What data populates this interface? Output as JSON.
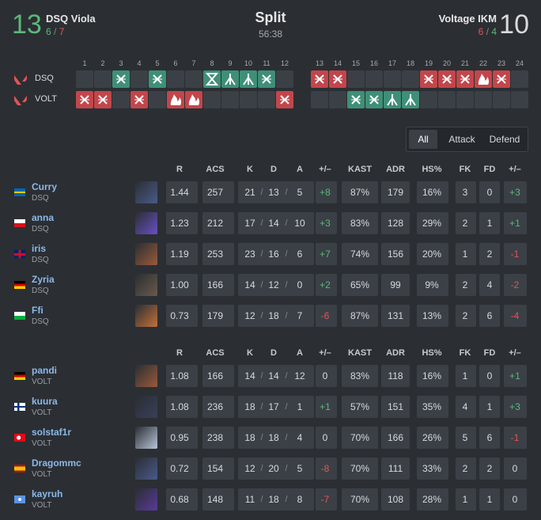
{
  "header": {
    "team1": {
      "score": "13",
      "name": "DSQ Viola",
      "half1": "6",
      "half2": "7"
    },
    "map": "Split",
    "duration": "56:38",
    "team2": {
      "score": "10",
      "name": "Voltage IKM",
      "half1": "6",
      "half2": "4"
    },
    "half_separator": "/"
  },
  "rounds": {
    "numbers": [
      "1",
      "2",
      "3",
      "4",
      "5",
      "6",
      "7",
      "8",
      "9",
      "10",
      "11",
      "12",
      "13",
      "14",
      "15",
      "16",
      "17",
      "18",
      "19",
      "20",
      "21",
      "22",
      "23",
      "24"
    ],
    "team1_label": "DSQ",
    "team2_label": "VOLT"
  },
  "tabs": [
    "All",
    "Attack",
    "Defend"
  ],
  "table": {
    "columns": [
      "R",
      "ACS",
      "K",
      "D",
      "A",
      "+/–",
      "KAST",
      "ADR",
      "HS%",
      "FK",
      "FD",
      "+/–"
    ],
    "kda_separator": "/",
    "teams": [
      {
        "players": [
          {
            "name": "Curry",
            "team": "DSQ",
            "stats": [
              "1.44",
              "257",
              "21",
              "13",
              "5",
              "+8",
              "87%",
              "179",
              "16%",
              "3",
              "0",
              "+3"
            ]
          },
          {
            "name": "anna",
            "team": "DSQ",
            "stats": [
              "1.23",
              "212",
              "17",
              "14",
              "10",
              "+3",
              "83%",
              "128",
              "29%",
              "2",
              "1",
              "+1"
            ]
          },
          {
            "name": "iris",
            "team": "DSQ",
            "stats": [
              "1.19",
              "253",
              "23",
              "16",
              "6",
              "+7",
              "74%",
              "156",
              "20%",
              "1",
              "2",
              "-1"
            ]
          },
          {
            "name": "Zyria",
            "team": "DSQ",
            "stats": [
              "1.00",
              "166",
              "14",
              "12",
              "0",
              "+2",
              "65%",
              "99",
              "9%",
              "2",
              "4",
              "-2"
            ]
          },
          {
            "name": "Ffi",
            "team": "DSQ",
            "stats": [
              "0.73",
              "179",
              "12",
              "18",
              "7",
              "-6",
              "87%",
              "131",
              "13%",
              "2",
              "6",
              "-4"
            ]
          }
        ]
      },
      {
        "players": [
          {
            "name": "pandi",
            "team": "VOLT",
            "stats": [
              "1.08",
              "166",
              "14",
              "14",
              "12",
              "0",
              "83%",
              "118",
              "16%",
              "1",
              "0",
              "+1"
            ]
          },
          {
            "name": "kuura",
            "team": "VOLT",
            "stats": [
              "1.08",
              "236",
              "18",
              "17",
              "1",
              "+1",
              "57%",
              "151",
              "35%",
              "4",
              "1",
              "+3"
            ]
          },
          {
            "name": "solstaf1r",
            "team": "VOLT",
            "stats": [
              "0.95",
              "238",
              "18",
              "18",
              "4",
              "0",
              "70%",
              "166",
              "26%",
              "5",
              "6",
              "-1"
            ]
          },
          {
            "name": "Dragommc",
            "team": "VOLT",
            "stats": [
              "0.72",
              "154",
              "12",
              "20",
              "5",
              "-8",
              "70%",
              "111",
              "33%",
              "2",
              "2",
              "0"
            ]
          },
          {
            "name": "kayruh",
            "team": "VOLT",
            "stats": [
              "0.68",
              "148",
              "11",
              "18",
              "8",
              "-7",
              "70%",
              "108",
              "28%",
              "1",
              "1",
              "0"
            ]
          }
        ]
      }
    ]
  }
}
